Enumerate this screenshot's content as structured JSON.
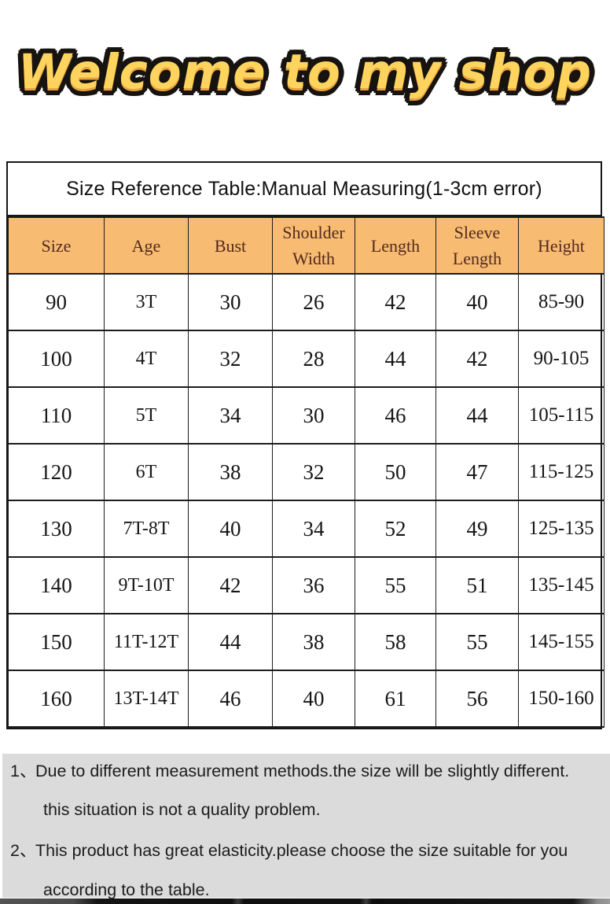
{
  "banner": {
    "text": "Welcome to my shop"
  },
  "table": {
    "title": "Size Reference Table:Manual Measuring(1-3cm error)",
    "columns": [
      "Size",
      "Age",
      "Bust",
      "Shoulder Width",
      "Length",
      "Sleeve Length",
      "Height"
    ],
    "rows": [
      [
        "90",
        "3T",
        "30",
        "26",
        "42",
        "40",
        "85-90"
      ],
      [
        "100",
        "4T",
        "32",
        "28",
        "44",
        "42",
        "90-105"
      ],
      [
        "110",
        "5T",
        "34",
        "30",
        "46",
        "44",
        "105-115"
      ],
      [
        "120",
        "6T",
        "38",
        "32",
        "50",
        "47",
        "115-125"
      ],
      [
        "130",
        "7T-8T",
        "40",
        "34",
        "52",
        "49",
        "125-135"
      ],
      [
        "140",
        "9T-10T",
        "42",
        "36",
        "55",
        "51",
        "135-145"
      ],
      [
        "150",
        "11T-12T",
        "44",
        "38",
        "58",
        "55",
        "145-155"
      ],
      [
        "160",
        "13T-14T",
        "46",
        "40",
        "61",
        "56",
        "150-160"
      ]
    ],
    "colors": {
      "header_bg": "#f7bc72",
      "header_text": "#54291d",
      "border": "#1c1c1c"
    }
  },
  "notes": {
    "items": [
      {
        "num": "1、",
        "line1": "Due to different measurement methods.the size will be slightly different.",
        "line2": "this situation is not a quality problem."
      },
      {
        "num": "2、",
        "line1": "This product has great elasticity.please choose the size suitable for you",
        "line2": "according to the table."
      }
    ]
  }
}
